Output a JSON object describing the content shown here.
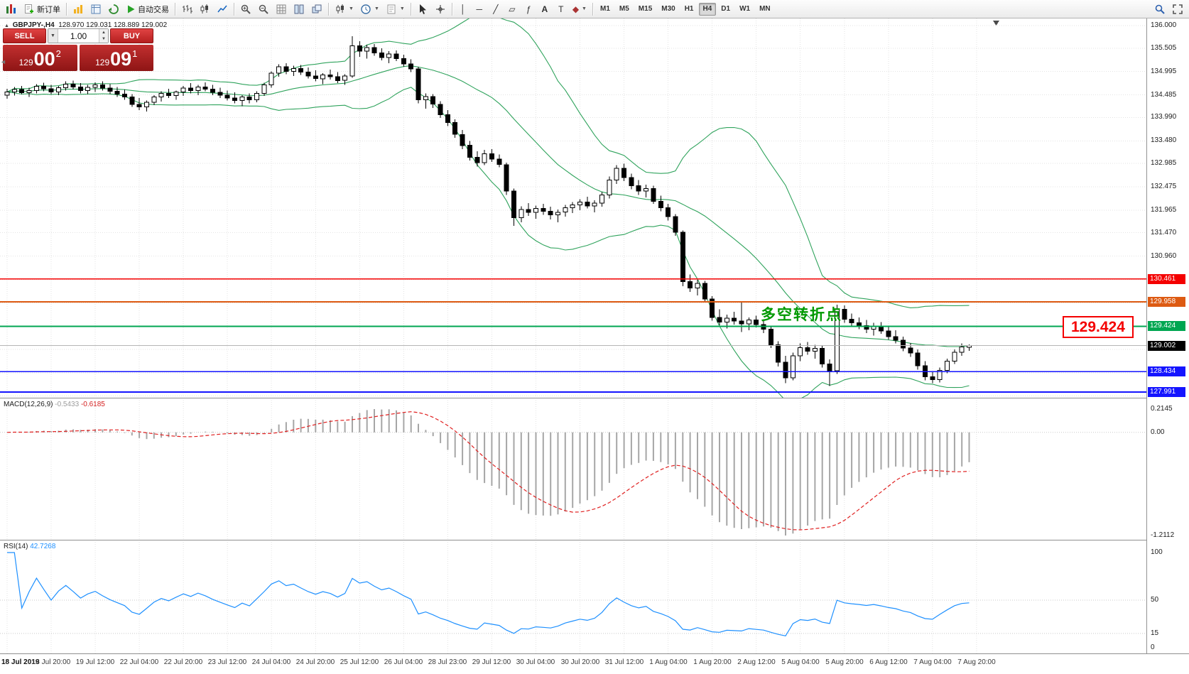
{
  "toolbar": {
    "new_order_label": "新订单",
    "autotrading_label": "自动交易",
    "timeframes": [
      "M1",
      "M5",
      "M15",
      "M30",
      "H1",
      "H4",
      "D1",
      "W1",
      "MN"
    ],
    "active_timeframe": "H4"
  },
  "chart": {
    "symbol_period": "GBPJPY-,H4",
    "ohlc": "128.970 129.031 128.889 129.002"
  },
  "trade_panel": {
    "sell_label": "SELL",
    "buy_label": "BUY",
    "volume": "1.00",
    "sell_price_prefix": "129",
    "sell_price_main": "00",
    "sell_price_sup": "2",
    "buy_price_prefix": "129",
    "buy_price_main": "09",
    "buy_price_sup": "1"
  },
  "annotation": {
    "text": "多空转折点",
    "color": "#009900"
  },
  "callout": {
    "text": "129.424"
  },
  "current_price": {
    "value": 129.002,
    "label": "129.002"
  },
  "hlines": [
    {
      "label": "130.461",
      "color": "#f40000",
      "thickness": 1.4
    },
    {
      "label": "129.958",
      "color": "#dd5a12",
      "thickness": 2
    },
    {
      "label": "129.424",
      "color": "#00a651",
      "thickness": 1.6
    },
    {
      "label": "128.434",
      "color": "#1414ff",
      "thickness": 1.4
    },
    {
      "label": "127.991",
      "color": "#1414ff",
      "thickness": 2
    }
  ],
  "price_axis": {
    "ticks": [
      "136.000",
      "135.505",
      "134.995",
      "134.485",
      "133.990",
      "133.480",
      "132.985",
      "132.475",
      "131.965",
      "131.470",
      "130.960"
    ]
  },
  "time_axis": {
    "labels": [
      "18 Jul 2019",
      "18 Jul 20:00",
      "19 Jul 12:00",
      "22 Jul 04:00",
      "22 Jul 20:00",
      "23 Jul 12:00",
      "24 Jul 04:00",
      "24 Jul 20:00",
      "25 Jul 12:00",
      "26 Jul 04:00",
      "28 Jul 23:00",
      "29 Jul 12:00",
      "30 Jul 04:00",
      "30 Jul 20:00",
      "31 Jul 12:00",
      "1 Aug 04:00",
      "1 Aug 20:00",
      "2 Aug 12:00",
      "5 Aug 04:00",
      "5 Aug 20:00",
      "6 Aug 12:00",
      "7 Aug 04:00",
      "7 Aug 20:00"
    ]
  },
  "macd": {
    "title": "MACD(12,26,9)",
    "value": "-0.5433",
    "signal": "-0.6185",
    "scale": [
      "0.2145",
      "0.00",
      "-1.2112"
    ]
  },
  "rsi": {
    "title": "RSI(14)",
    "value": "42.7268",
    "scale": [
      "100",
      "50",
      "15",
      "0"
    ],
    "levels": [
      50,
      15
    ]
  },
  "chart_data": {
    "type": "candlestick",
    "symbol": "GBPJPY-",
    "timeframe": "H4",
    "overlays": {
      "bollinger": {
        "period": 20,
        "deviation": 2,
        "color": "#2fa35c"
      }
    },
    "candles": [
      [
        134.48,
        134.62,
        134.4,
        134.55
      ],
      [
        134.55,
        134.66,
        134.47,
        134.6
      ],
      [
        134.6,
        134.68,
        134.5,
        134.53
      ],
      [
        134.53,
        134.64,
        134.44,
        134.58
      ],
      [
        134.58,
        134.72,
        134.52,
        134.67
      ],
      [
        134.67,
        134.75,
        134.56,
        134.62
      ],
      [
        134.62,
        134.7,
        134.5,
        134.55
      ],
      [
        134.55,
        134.68,
        134.48,
        134.64
      ],
      [
        134.64,
        134.78,
        134.58,
        134.72
      ],
      [
        134.72,
        134.8,
        134.6,
        134.66
      ],
      [
        134.66,
        134.74,
        134.52,
        134.58
      ],
      [
        134.58,
        134.7,
        134.5,
        134.65
      ],
      [
        134.65,
        134.76,
        134.55,
        134.7
      ],
      [
        134.7,
        134.78,
        134.58,
        134.63
      ],
      [
        134.63,
        134.72,
        134.5,
        134.56
      ],
      [
        134.56,
        134.66,
        134.44,
        134.5
      ],
      [
        134.5,
        134.6,
        134.38,
        134.44
      ],
      [
        134.44,
        134.5,
        134.22,
        134.28
      ],
      [
        134.28,
        134.42,
        134.15,
        134.22
      ],
      [
        134.22,
        134.36,
        134.12,
        134.32
      ],
      [
        134.32,
        134.48,
        134.26,
        134.44
      ],
      [
        134.44,
        134.56,
        134.34,
        134.52
      ],
      [
        134.52,
        134.62,
        134.42,
        134.47
      ],
      [
        134.47,
        134.58,
        134.38,
        134.55
      ],
      [
        134.55,
        134.68,
        134.46,
        134.63
      ],
      [
        134.63,
        134.74,
        134.52,
        134.58
      ],
      [
        134.58,
        134.7,
        134.48,
        134.66
      ],
      [
        134.66,
        134.76,
        134.56,
        134.61
      ],
      [
        134.61,
        134.7,
        134.48,
        134.54
      ],
      [
        134.54,
        134.64,
        134.42,
        134.48
      ],
      [
        134.48,
        134.58,
        134.36,
        134.42
      ],
      [
        134.42,
        134.54,
        134.3,
        134.36
      ],
      [
        134.36,
        134.48,
        134.24,
        134.44
      ],
      [
        134.44,
        134.52,
        134.3,
        134.38
      ],
      [
        134.38,
        134.56,
        134.32,
        134.52
      ],
      [
        134.52,
        134.75,
        134.46,
        134.7
      ],
      [
        134.7,
        135.0,
        134.64,
        134.96
      ],
      [
        134.96,
        135.15,
        134.88,
        135.1
      ],
      [
        135.1,
        135.18,
        134.94,
        135.0
      ],
      [
        135.0,
        135.12,
        134.9,
        135.06
      ],
      [
        135.06,
        135.14,
        134.92,
        134.98
      ],
      [
        134.98,
        135.08,
        134.84,
        134.9
      ],
      [
        134.9,
        135.02,
        134.78,
        134.84
      ],
      [
        134.84,
        134.96,
        134.72,
        134.92
      ],
      [
        134.92,
        135.04,
        134.82,
        134.88
      ],
      [
        134.88,
        134.98,
        134.74,
        134.8
      ],
      [
        134.8,
        134.94,
        134.7,
        134.9
      ],
      [
        134.9,
        135.77,
        134.86,
        135.56
      ],
      [
        135.56,
        135.66,
        135.32,
        135.44
      ],
      [
        135.44,
        135.58,
        135.28,
        135.52
      ],
      [
        135.52,
        135.6,
        135.34,
        135.4
      ],
      [
        135.4,
        135.5,
        135.24,
        135.3
      ],
      [
        135.3,
        135.44,
        135.18,
        135.38
      ],
      [
        135.38,
        135.46,
        135.22,
        135.28
      ],
      [
        135.28,
        135.36,
        135.1,
        135.16
      ],
      [
        135.16,
        135.26,
        134.98,
        135.05
      ],
      [
        135.05,
        135.1,
        134.3,
        134.38
      ],
      [
        134.38,
        134.52,
        134.18,
        134.45
      ],
      [
        134.45,
        134.5,
        134.2,
        134.28
      ],
      [
        134.28,
        134.35,
        133.98,
        134.05
      ],
      [
        134.05,
        134.15,
        133.8,
        133.88
      ],
      [
        133.88,
        133.95,
        133.55,
        133.62
      ],
      [
        133.62,
        133.72,
        133.3,
        133.38
      ],
      [
        133.38,
        133.48,
        133.05,
        133.12
      ],
      [
        133.12,
        133.25,
        132.92,
        133.0
      ],
      [
        133.0,
        133.28,
        132.95,
        133.2
      ],
      [
        133.2,
        133.3,
        133.02,
        133.08
      ],
      [
        133.08,
        133.18,
        132.9,
        132.96
      ],
      [
        132.96,
        133.0,
        132.3,
        132.38
      ],
      [
        132.38,
        132.44,
        131.62,
        131.8
      ],
      [
        131.8,
        132.05,
        131.7,
        131.98
      ],
      [
        131.98,
        132.12,
        131.84,
        131.92
      ],
      [
        131.92,
        132.06,
        131.78,
        132.0
      ],
      [
        132.0,
        132.1,
        131.86,
        131.94
      ],
      [
        131.94,
        132.04,
        131.76,
        131.86
      ],
      [
        131.86,
        131.98,
        131.7,
        131.92
      ],
      [
        131.92,
        132.08,
        131.82,
        132.02
      ],
      [
        132.02,
        132.14,
        131.9,
        132.08
      ],
      [
        132.08,
        132.2,
        131.96,
        132.14
      ],
      [
        132.14,
        132.26,
        132.0,
        132.06
      ],
      [
        132.06,
        132.18,
        131.92,
        132.12
      ],
      [
        132.12,
        132.36,
        132.04,
        132.3
      ],
      [
        132.3,
        132.7,
        132.22,
        132.62
      ],
      [
        132.62,
        132.95,
        132.54,
        132.88
      ],
      [
        132.88,
        132.98,
        132.6,
        132.68
      ],
      [
        132.68,
        132.76,
        132.42,
        132.5
      ],
      [
        132.5,
        132.62,
        132.3,
        132.38
      ],
      [
        132.38,
        132.52,
        132.24,
        132.44
      ],
      [
        132.44,
        132.5,
        132.1,
        132.16
      ],
      [
        132.16,
        132.28,
        131.94,
        132.02
      ],
      [
        132.02,
        132.1,
        131.74,
        131.82
      ],
      [
        131.82,
        131.88,
        131.4,
        131.48
      ],
      [
        131.48,
        131.52,
        130.3,
        130.4
      ],
      [
        130.4,
        130.56,
        130.18,
        130.26
      ],
      [
        130.26,
        130.44,
        130.1,
        130.36
      ],
      [
        130.36,
        130.42,
        129.95,
        130.02
      ],
      [
        130.02,
        130.08,
        129.55,
        129.62
      ],
      [
        129.62,
        129.8,
        129.45,
        129.52
      ],
      [
        129.52,
        129.68,
        129.38,
        129.6
      ],
      [
        129.6,
        129.74,
        129.46,
        129.54
      ],
      [
        129.54,
        129.95,
        129.3,
        129.48
      ],
      [
        129.48,
        129.62,
        129.34,
        129.56
      ],
      [
        129.56,
        129.66,
        129.4,
        129.46
      ],
      [
        129.46,
        129.58,
        129.28,
        129.36
      ],
      [
        129.36,
        129.42,
        128.95,
        129.02
      ],
      [
        129.02,
        129.1,
        128.55,
        128.64
      ],
      [
        128.64,
        128.78,
        128.18,
        128.3
      ],
      [
        128.3,
        128.85,
        128.24,
        128.78
      ],
      [
        128.78,
        129.05,
        128.66,
        128.96
      ],
      [
        128.96,
        129.08,
        128.8,
        128.88
      ],
      [
        128.88,
        129.02,
        128.72,
        128.94
      ],
      [
        128.94,
        129.0,
        128.52,
        128.6
      ],
      [
        128.6,
        128.7,
        128.12,
        128.45
      ],
      [
        128.45,
        129.9,
        128.38,
        129.8
      ],
      [
        129.8,
        129.88,
        129.5,
        129.58
      ],
      [
        129.58,
        129.7,
        129.42,
        129.5
      ],
      [
        129.5,
        129.62,
        129.36,
        129.44
      ],
      [
        129.44,
        129.56,
        129.28,
        129.36
      ],
      [
        129.36,
        129.5,
        129.22,
        129.42
      ],
      [
        129.42,
        129.52,
        129.26,
        129.32
      ],
      [
        129.32,
        129.44,
        129.14,
        129.2
      ],
      [
        129.2,
        129.34,
        129.05,
        129.12
      ],
      [
        129.12,
        129.2,
        128.88,
        128.95
      ],
      [
        128.95,
        129.06,
        128.76,
        128.84
      ],
      [
        128.84,
        128.92,
        128.48,
        128.56
      ],
      [
        128.56,
        128.66,
        128.24,
        128.32
      ],
      [
        128.32,
        128.44,
        128.18,
        128.26
      ],
      [
        128.26,
        128.52,
        128.2,
        128.46
      ],
      [
        128.46,
        128.72,
        128.4,
        128.66
      ],
      [
        128.66,
        128.92,
        128.6,
        128.86
      ],
      [
        128.86,
        129.05,
        128.78,
        128.97
      ],
      [
        128.97,
        129.031,
        128.889,
        129.002
      ]
    ]
  }
}
